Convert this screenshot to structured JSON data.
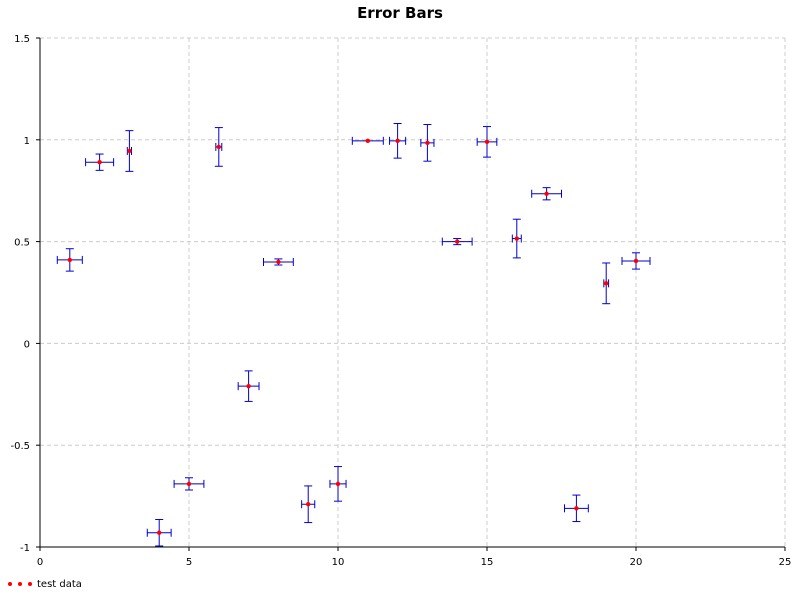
{
  "chart_data": {
    "type": "scatter",
    "title": "Error Bars",
    "xlabel": "",
    "ylabel": "",
    "xlim": [
      0,
      25
    ],
    "ylim": [
      -1,
      1.5
    ],
    "x_ticks": [
      0,
      5,
      10,
      15,
      20,
      25
    ],
    "y_ticks": [
      -1,
      -0.5,
      0,
      0.5,
      1,
      1.5
    ],
    "x_tick_labels": [
      "0",
      "5",
      "10",
      "15",
      "20",
      "25"
    ],
    "y_tick_labels": [
      "-1",
      "-0.5",
      "0",
      "0.5",
      "1",
      "1.5"
    ],
    "grid": true,
    "legend_position": "bottom-left",
    "series": [
      {
        "name": "test data",
        "color": "#ff0000",
        "error_color": "#0000cc",
        "points": [
          {
            "x": 1,
            "y": 0.41,
            "xerr": 0.42,
            "yerr": 0.055
          },
          {
            "x": 2,
            "y": 0.89,
            "xerr": 0.47,
            "yerr": 0.04
          },
          {
            "x": 3,
            "y": 0.945,
            "xerr": 0.07,
            "yerr": 0.1
          },
          {
            "x": 4,
            "y": -0.93,
            "xerr": 0.4,
            "yerr": 0.065
          },
          {
            "x": 5,
            "y": -0.69,
            "xerr": 0.5,
            "yerr": 0.03
          },
          {
            "x": 6,
            "y": 0.965,
            "xerr": 0.1,
            "yerr": 0.095
          },
          {
            "x": 7,
            "y": -0.21,
            "xerr": 0.35,
            "yerr": 0.075
          },
          {
            "x": 8,
            "y": 0.4,
            "xerr": 0.5,
            "yerr": 0.015
          },
          {
            "x": 9,
            "y": -0.79,
            "xerr": 0.22,
            "yerr": 0.09
          },
          {
            "x": 10,
            "y": -0.69,
            "xerr": 0.27,
            "yerr": 0.085
          },
          {
            "x": 11,
            "y": 0.995,
            "xerr": 0.52,
            "yerr": 0
          },
          {
            "x": 12,
            "y": 0.995,
            "xerr": 0.27,
            "yerr": 0.085
          },
          {
            "x": 13,
            "y": 0.985,
            "xerr": 0.22,
            "yerr": 0.09
          },
          {
            "x": 14,
            "y": 0.5,
            "xerr": 0.5,
            "yerr": 0.015
          },
          {
            "x": 15,
            "y": 0.99,
            "xerr": 0.33,
            "yerr": 0.075
          },
          {
            "x": 16,
            "y": 0.515,
            "xerr": 0.15,
            "yerr": 0.095
          },
          {
            "x": 17,
            "y": 0.735,
            "xerr": 0.5,
            "yerr": 0.03
          },
          {
            "x": 18,
            "y": -0.81,
            "xerr": 0.4,
            "yerr": 0.065
          },
          {
            "x": 19,
            "y": 0.295,
            "xerr": 0.08,
            "yerr": 0.1
          },
          {
            "x": 20,
            "y": 0.405,
            "xerr": 0.47,
            "yerr": 0.04
          }
        ]
      }
    ]
  }
}
